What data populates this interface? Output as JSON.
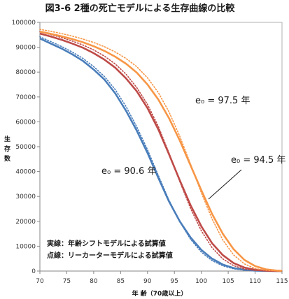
{
  "chart_data": {
    "type": "line",
    "title": "図3-6 2種の死亡モデルによる生存曲線の比較",
    "xlabel": "年 齢（70歳以上）",
    "ylabel": "生存数",
    "xlim": [
      70,
      115
    ],
    "ylim": [
      0,
      100000
    ],
    "x_ticks": [
      "70",
      "75",
      "80",
      "85",
      "90",
      "95",
      "100",
      "105",
      "110",
      "115"
    ],
    "y_ticks": [
      "0",
      "10000",
      "20000",
      "30000",
      "40000",
      "50000",
      "60000",
      "70000",
      "80000",
      "90000",
      "100000"
    ],
    "grid": false,
    "x": [
      70,
      72,
      74,
      76,
      78,
      80,
      82,
      84,
      86,
      88,
      90,
      92,
      94,
      96,
      98,
      100,
      102,
      104,
      106,
      108,
      110,
      112,
      114,
      115
    ],
    "series": [
      {
        "group": "90.6",
        "style": "solid",
        "color": "#4a7ebb",
        "values": [
          93500,
          91500,
          89500,
          87200,
          84500,
          81000,
          77000,
          71500,
          64500,
          56500,
          47500,
          37500,
          28000,
          20000,
          13500,
          8500,
          5000,
          2600,
          1200,
          500,
          150,
          50,
          10,
          0
        ]
      },
      {
        "group": "90.6",
        "style": "dotted",
        "color": "#4a7ebb",
        "values": [
          94200,
          92300,
          90300,
          88100,
          85500,
          82200,
          78200,
          73000,
          66200,
          58000,
          48800,
          38500,
          28500,
          19800,
          12800,
          7600,
          4200,
          2100,
          900,
          350,
          100,
          30,
          5,
          0
        ]
      },
      {
        "group": "94.5",
        "style": "solid",
        "color": "#be4b48",
        "values": [
          95500,
          94300,
          93000,
          91500,
          89800,
          87600,
          85000,
          81800,
          77500,
          72300,
          65500,
          57000,
          47000,
          36500,
          26500,
          18000,
          11200,
          6400,
          3200,
          1400,
          500,
          150,
          30,
          0
        ]
      },
      {
        "group": "94.5",
        "style": "dotted",
        "color": "#be4b48",
        "values": [
          96200,
          95100,
          93900,
          92500,
          90900,
          88900,
          86400,
          83300,
          79200,
          73800,
          67000,
          58200,
          47500,
          36000,
          25200,
          16200,
          9400,
          4900,
          2200,
          800,
          250,
          60,
          10,
          0
        ]
      },
      {
        "group": "97.5",
        "style": "solid",
        "color": "#f79646",
        "values": [
          96300,
          95400,
          94400,
          93300,
          92000,
          90400,
          88500,
          86200,
          83400,
          79800,
          75000,
          69000,
          61500,
          52500,
          42500,
          32500,
          23000,
          15000,
          8800,
          4500,
          2000,
          700,
          200,
          80
        ]
      },
      {
        "group": "97.5",
        "style": "dotted",
        "color": "#f79646",
        "values": [
          97200,
          96400,
          95500,
          94500,
          93300,
          91900,
          90200,
          88100,
          85500,
          82200,
          77700,
          71800,
          64000,
          54200,
          43000,
          31500,
          21000,
          12500,
          6500,
          2900,
          1000,
          300,
          60,
          20
        ]
      }
    ],
    "annotations": {
      "e_97_5": "e₀ =  97.5 年",
      "e_94_5": "e₀ =  94.5 年",
      "e_90_6": "e₀ = 90.6 年",
      "note_solid": "実線：年齢シフトモデルによる試算値",
      "note_dotted": "点線：リーカーターモデルによる試算値"
    }
  }
}
